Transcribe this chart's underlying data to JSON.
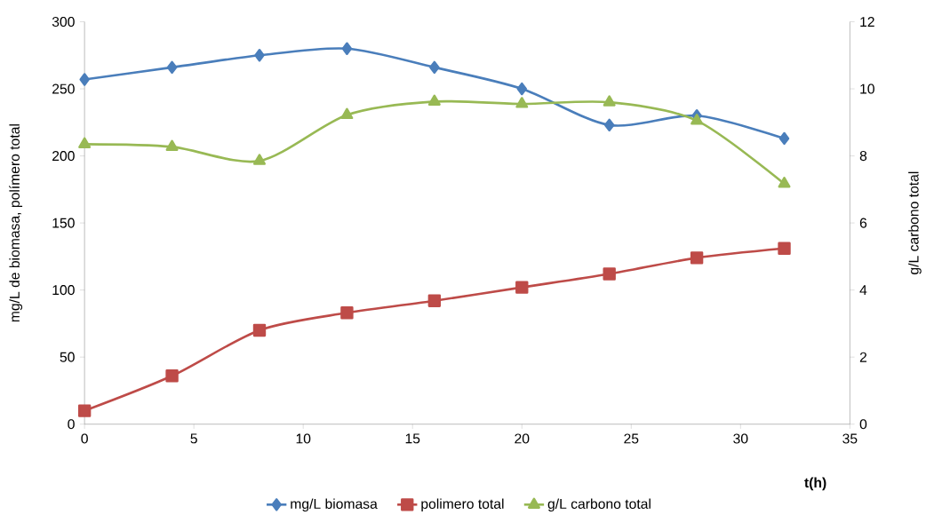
{
  "chart_data": {
    "type": "line",
    "xlabel": "t(h)",
    "ylabel": "mg/L  de biomasa, polímero total",
    "y2label": "g/L carbono total",
    "x": [
      0,
      4,
      8,
      12,
      16,
      20,
      24,
      28,
      32
    ],
    "series": [
      {
        "name": "mg/L biomasa",
        "color": "#4a7ebb",
        "marker": "diamond",
        "values": [
          257,
          266,
          275,
          280,
          266,
          250,
          223,
          230,
          213
        ]
      },
      {
        "name": "polimero total",
        "color": "#be4b48",
        "marker": "square",
        "values": [
          10,
          36,
          70,
          83,
          92,
          102,
          112,
          124,
          131
        ]
      },
      {
        "name": "g/L carbono total",
        "color": "#98b954",
        "marker": "triangle",
        "axis": "y2",
        "values": [
          8.35,
          8.27,
          7.85,
          9.22,
          9.62,
          9.55,
          9.6,
          9.05,
          7.17
        ]
      }
    ],
    "xlim": [
      0,
      35
    ],
    "xticks": [
      0,
      5,
      10,
      15,
      20,
      25,
      30,
      35
    ],
    "ylim": [
      0,
      300
    ],
    "yticks": [
      0,
      50,
      100,
      150,
      200,
      250,
      300
    ],
    "y2lim": [
      0,
      12
    ],
    "y2ticks": [
      0,
      2,
      4,
      6,
      8,
      10,
      12
    ],
    "legend": "bottom",
    "grid": false
  }
}
